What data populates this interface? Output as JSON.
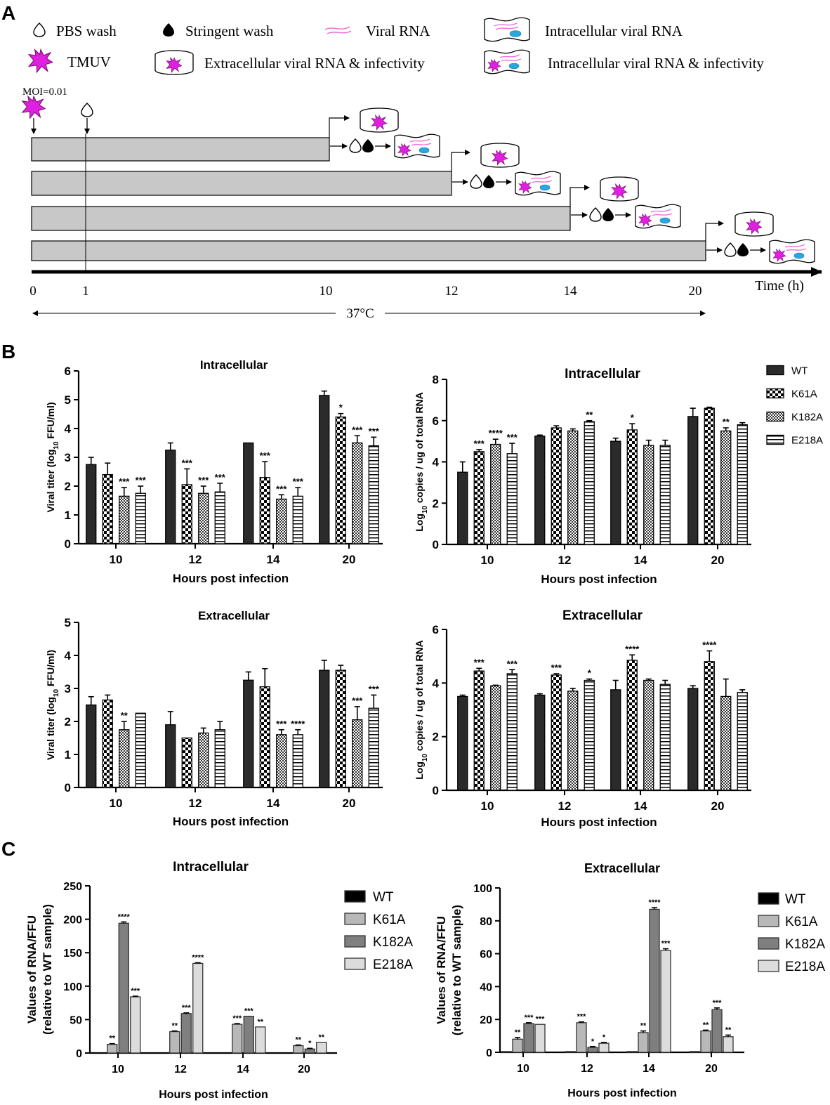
{
  "panel_labels": [
    "A",
    "B",
    "C"
  ],
  "schematic": {
    "legend": {
      "pbs_wash": "PBS wash",
      "stringent_wash": "Stringent wash",
      "viral_rna": "Viral RNA",
      "intracellular_rna": "Intracellular viral RNA",
      "tmuv": "TMUV",
      "extracellular": "Extracellular viral RNA & infectivity",
      "intracellular_infectivity": "Intracellular viral RNA & infectivity"
    },
    "moi": "MOI=0.01",
    "time_ticks": [
      "0",
      "1",
      "10",
      "12",
      "14",
      "20"
    ],
    "time_label": "Time (h)",
    "temperature": "37°C",
    "colors": {
      "bar": "#c8c8c8",
      "virus": "#e020e0",
      "nucleus": "#29a8e0",
      "rna": "#ef6fd8"
    }
  },
  "chart_data": [
    {
      "id": "B1",
      "type": "bar",
      "title": "Intracellular",
      "xlabel": "Hours post infection",
      "ylabel": "Viral titer (log10 FFU/ml)",
      "ylim": [
        0,
        6
      ],
      "yticks": [
        "0",
        "1",
        "2",
        "3",
        "4",
        "5",
        "6"
      ],
      "categories": [
        "10",
        "12",
        "14",
        "20"
      ],
      "series": [
        {
          "name": "WT",
          "values": [
            2.75,
            3.25,
            3.5,
            5.15
          ],
          "errors": [
            0.25,
            0.25,
            0,
            0.15
          ]
        },
        {
          "name": "K61A",
          "values": [
            2.4,
            2.05,
            2.3,
            4.4
          ],
          "errors": [
            0.4,
            0.55,
            0.55,
            0.12
          ]
        },
        {
          "name": "K182A",
          "values": [
            1.65,
            1.75,
            1.55,
            3.5
          ],
          "errors": [
            0.3,
            0.25,
            0.15,
            0.25
          ]
        },
        {
          "name": "E218A",
          "values": [
            1.75,
            1.8,
            1.65,
            3.4
          ],
          "errors": [
            0.25,
            0.3,
            0.3,
            0.3
          ]
        }
      ],
      "significance": [
        [
          "",
          "",
          "",
          ""
        ],
        [
          "",
          "***",
          "***",
          "*"
        ],
        [
          "***",
          "***",
          "***",
          "***"
        ],
        [
          "***",
          "***",
          "***",
          "***"
        ]
      ]
    },
    {
      "id": "B2",
      "type": "bar",
      "title": "Intracellular",
      "xlabel": "Hours post infection",
      "ylabel": "Log10 copies / ug of total RNA",
      "ylim": [
        0,
        8
      ],
      "yticks": [
        "0",
        "2",
        "4",
        "6",
        "8"
      ],
      "categories": [
        "10",
        "12",
        "14",
        "20"
      ],
      "series": [
        {
          "name": "WT",
          "values": [
            3.5,
            5.25,
            5.0,
            6.2
          ],
          "errors": [
            0.5,
            0.05,
            0.15,
            0.4
          ]
        },
        {
          "name": "K61A",
          "values": [
            4.5,
            5.65,
            5.55,
            6.6
          ],
          "errors": [
            0.1,
            0.1,
            0.3,
            0.05
          ]
        },
        {
          "name": "K182A",
          "values": [
            4.85,
            5.5,
            4.8,
            5.5
          ],
          "errors": [
            0.25,
            0.1,
            0.25,
            0.15
          ]
        },
        {
          "name": "E218A",
          "values": [
            4.4,
            5.95,
            4.8,
            5.8
          ],
          "errors": [
            0.5,
            0.05,
            0.25,
            0.1
          ]
        }
      ],
      "significance": [
        [
          "",
          "",
          "",
          ""
        ],
        [
          "***",
          "",
          "*",
          ""
        ],
        [
          "****",
          "",
          "",
          "**"
        ],
        [
          "***",
          "**",
          "",
          ""
        ]
      ]
    },
    {
      "id": "B3",
      "type": "bar",
      "title": "Extracellular",
      "xlabel": "Hours post infection",
      "ylabel": "Viral titer (log10 FFU/ml)",
      "ylim": [
        0,
        5
      ],
      "yticks": [
        "0",
        "1",
        "2",
        "3",
        "4",
        "5"
      ],
      "categories": [
        "10",
        "12",
        "14",
        "20"
      ],
      "series": [
        {
          "name": "WT",
          "values": [
            2.5,
            1.9,
            3.25,
            3.55
          ],
          "errors": [
            0.25,
            0.4,
            0.25,
            0.3
          ]
        },
        {
          "name": "K61A",
          "values": [
            2.65,
            1.5,
            3.05,
            3.55
          ],
          "errors": [
            0.15,
            0,
            0.55,
            0.15
          ]
        },
        {
          "name": "K182A",
          "values": [
            1.75,
            1.65,
            1.6,
            2.05
          ],
          "errors": [
            0.25,
            0.15,
            0.15,
            0.4
          ]
        },
        {
          "name": "E218A",
          "values": [
            2.25,
            1.75,
            1.6,
            2.4
          ],
          "errors": [
            0,
            0.25,
            0.15,
            0.4
          ]
        }
      ],
      "significance": [
        [
          "",
          "",
          "",
          ""
        ],
        [
          "",
          "",
          "",
          ""
        ],
        [
          "**",
          "",
          "***",
          "***"
        ],
        [
          "",
          "",
          "****",
          "***"
        ]
      ]
    },
    {
      "id": "B4",
      "type": "bar",
      "title": "Extracellular",
      "xlabel": "Hours post infection",
      "ylabel": "Log10 copies / ug of total RNA",
      "ylim": [
        0,
        6
      ],
      "yticks": [
        "0",
        "2",
        "4",
        "6"
      ],
      "categories": [
        "10",
        "12",
        "14",
        "20"
      ],
      "series": [
        {
          "name": "WT",
          "values": [
            3.5,
            3.55,
            3.75,
            3.8
          ],
          "errors": [
            0.05,
            0.05,
            0.35,
            0.1
          ]
        },
        {
          "name": "K61A",
          "values": [
            4.45,
            4.3,
            4.85,
            4.8
          ],
          "errors": [
            0.1,
            0.05,
            0.2,
            0.4
          ]
        },
        {
          "name": "K182A",
          "values": [
            3.9,
            3.7,
            4.1,
            3.5
          ],
          "errors": [
            0.02,
            0.1,
            0.05,
            0.65
          ]
        },
        {
          "name": "E218A",
          "values": [
            4.35,
            4.1,
            3.95,
            3.65
          ],
          "errors": [
            0.15,
            0.05,
            0.15,
            0.1
          ]
        }
      ],
      "significance": [
        [
          "",
          "",
          "",
          ""
        ],
        [
          "***",
          "***",
          "****",
          "****"
        ],
        [
          "",
          "",
          "",
          ""
        ],
        [
          "***",
          "*",
          "",
          ""
        ]
      ]
    },
    {
      "id": "C1",
      "type": "bar",
      "title": "Intracellular",
      "xlabel": "Hours post infection",
      "ylabel": "Values of RNA/FFU\n(relative to WT sample)",
      "ylim": [
        0,
        250
      ],
      "yticks": [
        "0",
        "50",
        "100",
        "150",
        "200",
        "250"
      ],
      "categories": [
        "10",
        "12",
        "14",
        "20"
      ],
      "series": [
        {
          "name": "WT",
          "values": [
            0,
            0,
            0,
            0
          ],
          "errors": [
            0,
            0,
            0,
            0
          ]
        },
        {
          "name": "K61A",
          "values": [
            13,
            32,
            43,
            11
          ],
          "errors": [
            1,
            1,
            1,
            1
          ]
        },
        {
          "name": "K182A",
          "values": [
            194,
            59,
            55,
            6
          ],
          "errors": [
            2,
            1,
            0,
            1
          ]
        },
        {
          "name": "E218A",
          "values": [
            84,
            134,
            39,
            16
          ],
          "errors": [
            1,
            1,
            0,
            0
          ]
        }
      ],
      "significance": [
        [
          "",
          "",
          "",
          ""
        ],
        [
          "**",
          "**",
          "***",
          "**"
        ],
        [
          "****",
          "***",
          "***",
          "*"
        ],
        [
          "***",
          "****",
          "**",
          "**"
        ]
      ]
    },
    {
      "id": "C2",
      "type": "bar",
      "title": "Extracellular",
      "xlabel": "Hours post infection",
      "ylabel": "Values of RNA/FFU\n(relative to WT sample)",
      "ylim": [
        0,
        100
      ],
      "yticks": [
        "0",
        "20",
        "40",
        "60",
        "80",
        "100"
      ],
      "categories": [
        "10",
        "12",
        "14",
        "20"
      ],
      "series": [
        {
          "name": "WT",
          "values": [
            0.5,
            0.5,
            0.5,
            0.5
          ],
          "errors": [
            0,
            0,
            0,
            0
          ]
        },
        {
          "name": "K61A",
          "values": [
            8,
            18,
            12,
            13
          ],
          "errors": [
            1,
            0.5,
            1,
            0.5
          ]
        },
        {
          "name": "K182A",
          "values": [
            17.5,
            3,
            87,
            26
          ],
          "errors": [
            0.5,
            0.5,
            1,
            1
          ]
        },
        {
          "name": "E218A",
          "values": [
            17,
            5.5,
            62,
            9.5
          ],
          "errors": [
            0,
            0.5,
            1,
            1
          ]
        }
      ],
      "significance": [
        [
          "",
          "",
          "",
          ""
        ],
        [
          "**",
          "***",
          "**",
          "**"
        ],
        [
          "***",
          "*",
          "****",
          "***"
        ],
        [
          "***",
          "*",
          "***",
          "**"
        ]
      ]
    }
  ],
  "legend_B": [
    "WT",
    "K61A",
    "K182A",
    "E218A"
  ],
  "legend_C": [
    "WT",
    "K61A",
    "K182A",
    "E218A"
  ],
  "colors_C": [
    "#000000",
    "#b8b8b8",
    "#7f7f7f",
    "#dcdcdc"
  ]
}
